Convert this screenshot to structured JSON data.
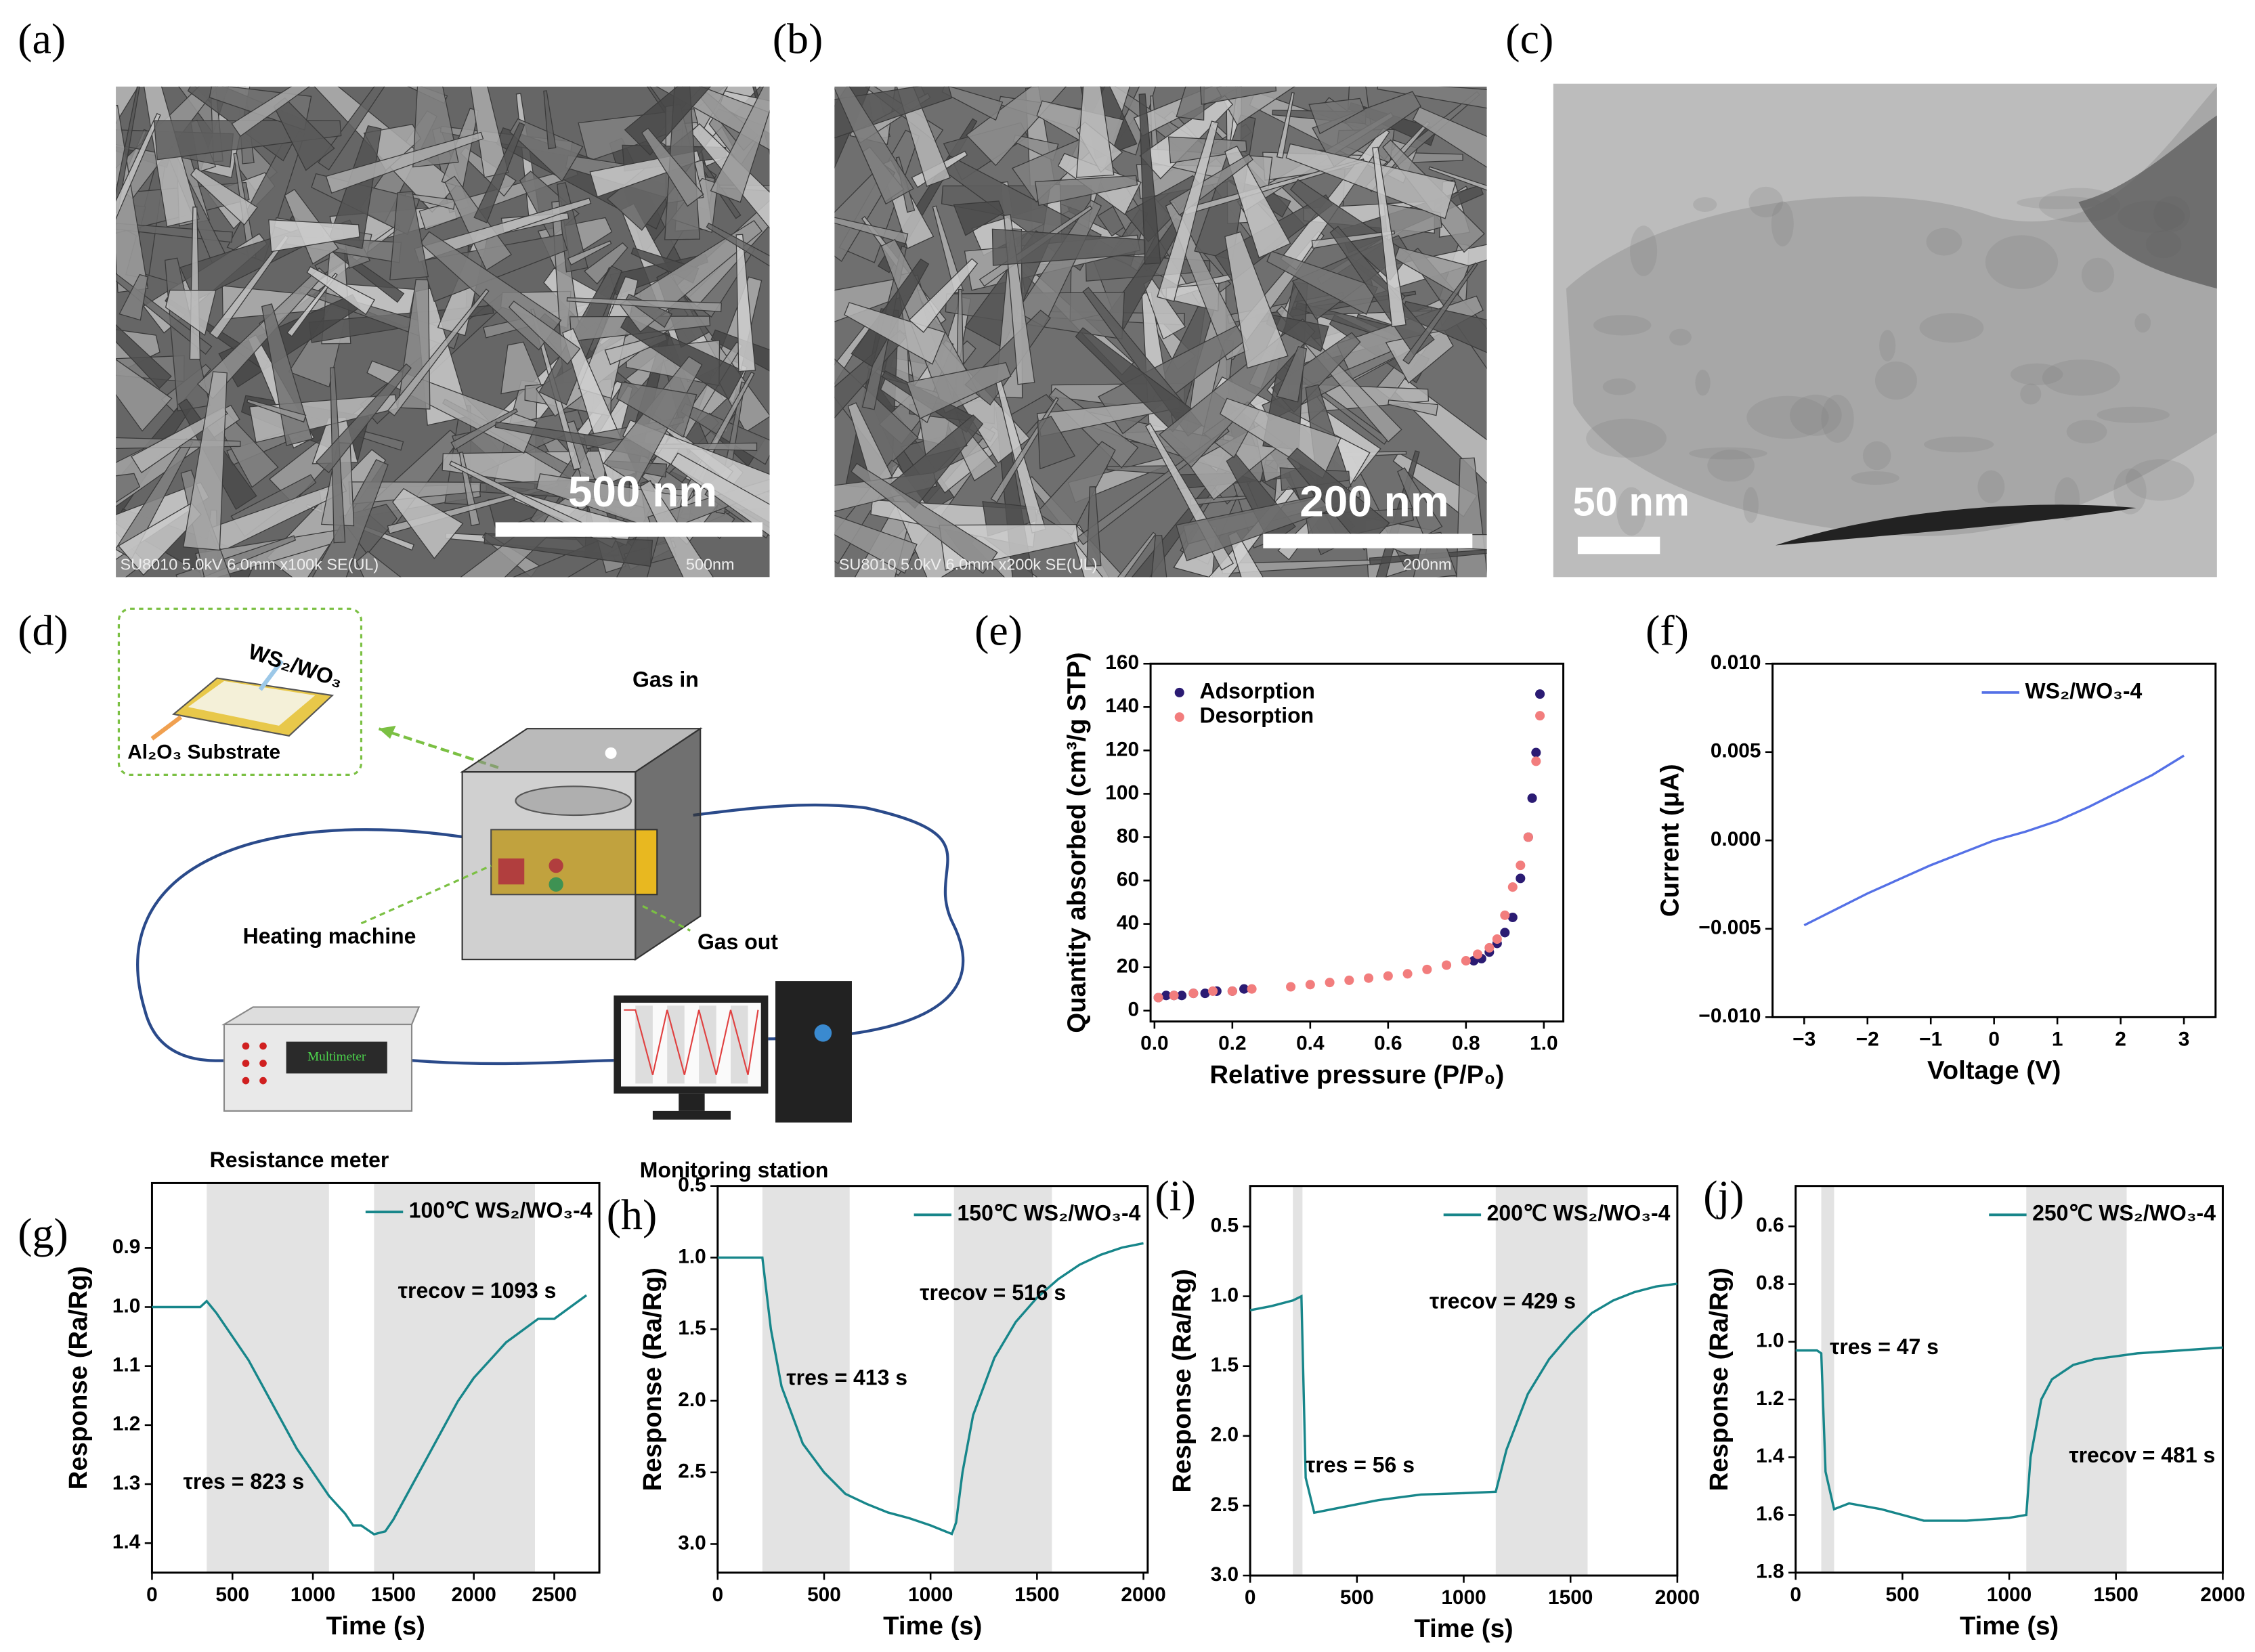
{
  "panel_labels": [
    "(a)",
    "(b)",
    "(c)",
    "(d)",
    "(e)",
    "(f)",
    "(g)",
    "(h)",
    "(i)",
    "(j)"
  ],
  "micrographs": [
    {
      "scale_bar": "500 nm",
      "info": "SU8010 5.0kV 6.0mm x100k SE(UL)",
      "info_scale": "500nm"
    },
    {
      "scale_bar": "200 nm",
      "info": "SU8010 5.0kV 6.0mm x200k SE(UL)",
      "info_scale": "200nm"
    },
    {
      "scale_bar": "50 nm"
    }
  ],
  "setup": {
    "sample": "WS₂/WO₃",
    "substrate": "Al₂O₃ Substrate",
    "gas_in": "Gas in",
    "heater": "Heating machine",
    "gas_out": "Gas out",
    "meter_screen": "Multimeter",
    "meter": "Resistance meter",
    "station": "Monitoring station"
  },
  "chart_data": [
    {
      "type": "scatter",
      "xlabel": "Relative pressure (P/P₀)",
      "ylabel": "Quantity absorbed (cm³/g STP)",
      "xlim": [
        -0.01,
        1.05
      ],
      "ylim": [
        -5,
        160
      ],
      "xticks": [
        {
          "value": 0,
          "label": "0.0"
        },
        0.2,
        0.4,
        0.6,
        0.8,
        {
          "value": 1,
          "label": "1.0"
        }
      ],
      "yticks": [
        0,
        20,
        40,
        60,
        80,
        100,
        120,
        140,
        160
      ],
      "legend": "upper left",
      "series": [
        {
          "name": "Adsorption",
          "color": "#2b1b73",
          "x": [
            0.01,
            0.03,
            0.05,
            0.07,
            0.1,
            0.13,
            0.16,
            0.2,
            0.23,
            0.82,
            0.84,
            0.86,
            0.88,
            0.9,
            0.92,
            0.94,
            0.96,
            0.97,
            0.98,
            0.99
          ],
          "values": [
            6,
            7,
            7,
            7,
            8,
            8,
            9,
            9,
            10,
            23,
            24,
            27,
            31,
            36,
            43,
            61,
            80,
            98,
            119,
            146
          ]
        },
        {
          "name": "Desorption",
          "color": "#f27d7d",
          "x": [
            0.01,
            0.05,
            0.1,
            0.15,
            0.2,
            0.25,
            0.35,
            0.4,
            0.45,
            0.5,
            0.55,
            0.6,
            0.65,
            0.7,
            0.75,
            0.8,
            0.83,
            0.86,
            0.88,
            0.9,
            0.92,
            0.94,
            0.96,
            0.98,
            0.99
          ],
          "values": [
            6,
            7,
            8,
            9,
            9,
            10,
            11,
            12,
            13,
            14,
            15,
            16,
            17,
            19,
            21,
            23,
            26,
            29,
            33,
            44,
            57,
            67,
            80,
            115,
            136
          ]
        }
      ]
    },
    {
      "type": "line",
      "xlabel": "Voltage (V)",
      "ylabel": "Current (μA)",
      "xlim": [
        -3.5,
        3.5
      ],
      "ylim": [
        -0.01,
        0.01
      ],
      "xticks": [
        {
          "value": -3,
          "label": "−3"
        },
        {
          "value": -2,
          "label": "−2"
        },
        {
          "value": -1,
          "label": "−1"
        },
        0,
        1,
        2,
        3
      ],
      "yticks": [
        {
          "value": -0.01,
          "label": "−0.010"
        },
        {
          "value": -0.005,
          "label": "−0.005"
        },
        {
          "value": 0,
          "label": "0.000"
        },
        {
          "value": 0.005,
          "label": "0.005"
        },
        {
          "value": 0.01,
          "label": "0.010"
        }
      ],
      "legend": "upper right",
      "series": [
        {
          "name": "WS₂/WO₃-4",
          "color": "#5470e6",
          "x": [
            -3,
            -2.5,
            -2,
            -1.5,
            -1,
            -0.5,
            0,
            0.5,
            1,
            1.5,
            2,
            2.5,
            3
          ],
          "values": [
            -0.0048,
            -0.0039,
            -0.003,
            -0.0022,
            -0.0014,
            -0.0007,
            0,
            0.0005,
            0.0011,
            0.0019,
            0.0028,
            0.0037,
            0.0048
          ]
        }
      ]
    },
    {
      "type": "line",
      "xlabel": "Time (s)",
      "ylabel": "Response (Ra/Rg)",
      "xlim": [
        0,
        2780
      ],
      "ylim": [
        0.79,
        1.45
      ],
      "y_reversed": true,
      "xticks": [
        0,
        500,
        1000,
        1500,
        2000,
        2500
      ],
      "yticks": [
        0.9,
        {
          "value": 1,
          "label": "1.0"
        },
        1.1,
        1.2,
        1.3,
        1.4
      ],
      "legend": "upper right",
      "shaded": [
        [
          340,
          1100
        ],
        [
          1380,
          2380
        ]
      ],
      "annotations": [
        "τres = 823 s",
        "τrecov = 1093 s"
      ],
      "series": [
        {
          "name": "100℃ WS₂/WO₃-4",
          "color": "#17868a",
          "x": [
            0,
            100,
            200,
            300,
            340,
            400,
            500,
            600,
            700,
            800,
            900,
            1000,
            1100,
            1200,
            1250,
            1300,
            1380,
            1450,
            1500,
            1600,
            1700,
            1800,
            1900,
            2000,
            2100,
            2200,
            2300,
            2400,
            2500,
            2600,
            2700
          ],
          "values": [
            1.0,
            1.0,
            1.0,
            1.0,
            0.99,
            1.01,
            1.05,
            1.09,
            1.14,
            1.19,
            1.24,
            1.28,
            1.32,
            1.35,
            1.37,
            1.37,
            1.385,
            1.38,
            1.36,
            1.31,
            1.26,
            1.21,
            1.16,
            1.12,
            1.09,
            1.06,
            1.04,
            1.02,
            1.02,
            1.0,
            0.98
          ]
        }
      ]
    },
    {
      "type": "line",
      "xlabel": "Time (s)",
      "ylabel": "Response (Ra/Rg)",
      "xlim": [
        0,
        2020
      ],
      "ylim": [
        0.5,
        3.2
      ],
      "y_reversed": true,
      "xticks": [
        0,
        500,
        1000,
        1500,
        2000
      ],
      "yticks": [
        0.5,
        {
          "value": 1,
          "label": "1.0"
        },
        1.5,
        {
          "value": 2,
          "label": "2.0"
        },
        2.5,
        {
          "value": 3,
          "label": "3.0"
        }
      ],
      "legend": "upper right",
      "shaded": [
        [
          210,
          620
        ],
        [
          1110,
          1570
        ]
      ],
      "annotations": [
        "τres = 413 s",
        "τrecov = 516 s"
      ],
      "series": [
        {
          "name": "150℃ WS₂/WO₃-4",
          "color": "#17868a",
          "x": [
            0,
            100,
            200,
            210,
            250,
            300,
            400,
            500,
            600,
            700,
            800,
            900,
            1000,
            1100,
            1120,
            1150,
            1200,
            1300,
            1400,
            1500,
            1600,
            1700,
            1800,
            1900,
            2000
          ],
          "values": [
            1.0,
            1.0,
            1.0,
            1.0,
            1.5,
            1.9,
            2.3,
            2.5,
            2.65,
            2.72,
            2.78,
            2.82,
            2.87,
            2.93,
            2.85,
            2.5,
            2.1,
            1.7,
            1.45,
            1.28,
            1.15,
            1.05,
            0.98,
            0.93,
            0.9
          ]
        }
      ]
    },
    {
      "type": "line",
      "xlabel": "Time (s)",
      "ylabel": "Response (Ra/Rg)",
      "xlim": [
        0,
        2000
      ],
      "ylim": [
        0.21,
        3.0
      ],
      "y_reversed": true,
      "xticks": [
        0,
        500,
        1000,
        1500,
        2000
      ],
      "yticks": [
        0.5,
        {
          "value": 1,
          "label": "1.0"
        },
        1.5,
        {
          "value": 2,
          "label": "2.0"
        },
        2.5,
        {
          "value": 3,
          "label": "3.0"
        }
      ],
      "legend": "upper right",
      "shaded": [
        [
          200,
          245
        ],
        [
          1150,
          1580
        ]
      ],
      "annotations": [
        "τres = 56 s",
        "τrecov = 429 s"
      ],
      "series": [
        {
          "name": "200℃ WS₂/WO₃-4",
          "color": "#17868a",
          "x": [
            0,
            100,
            200,
            240,
            260,
            300,
            400,
            600,
            800,
            1000,
            1150,
            1200,
            1300,
            1400,
            1500,
            1600,
            1700,
            1800,
            1900,
            2000
          ],
          "values": [
            1.1,
            1.07,
            1.03,
            1.0,
            2.3,
            2.55,
            2.52,
            2.46,
            2.42,
            2.41,
            2.4,
            2.1,
            1.7,
            1.45,
            1.27,
            1.12,
            1.03,
            0.97,
            0.93,
            0.91
          ]
        }
      ]
    },
    {
      "type": "line",
      "xlabel": "Time (s)",
      "ylabel": "Response (Ra/Rg)",
      "xlim": [
        0,
        2000
      ],
      "ylim": [
        0.46,
        1.8
      ],
      "y_reversed": true,
      "xticks": [
        0,
        500,
        1000,
        1500,
        2000
      ],
      "yticks": [
        0.6,
        0.8,
        {
          "value": 1,
          "label": "1.0"
        },
        1.2,
        1.4,
        1.6,
        1.8
      ],
      "legend": "upper right",
      "shaded": [
        [
          120,
          180
        ],
        [
          1080,
          1550
        ]
      ],
      "annotations": [
        "τres = 47 s",
        "τrecov = 481 s"
      ],
      "series": [
        {
          "name": "250℃ WS₂/WO₃-4",
          "color": "#17868a",
          "x": [
            0,
            50,
            100,
            120,
            140,
            180,
            250,
            400,
            600,
            800,
            1000,
            1080,
            1100,
            1150,
            1200,
            1300,
            1400,
            1500,
            1600,
            1800,
            2000
          ],
          "values": [
            1.03,
            1.03,
            1.03,
            1.04,
            1.45,
            1.58,
            1.56,
            1.58,
            1.62,
            1.62,
            1.61,
            1.6,
            1.4,
            1.2,
            1.13,
            1.08,
            1.06,
            1.05,
            1.04,
            1.03,
            1.02
          ]
        }
      ]
    }
  ]
}
